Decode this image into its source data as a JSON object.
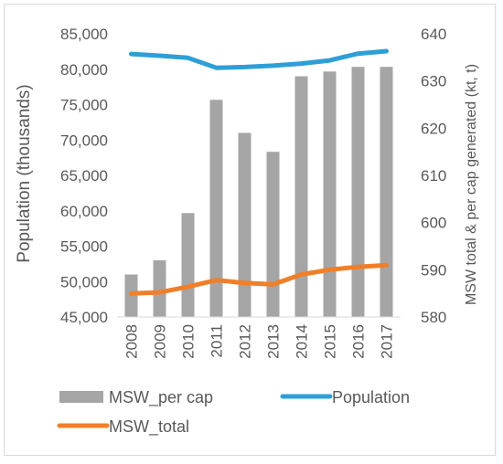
{
  "chart_data": {
    "type": "bar+line",
    "categories": [
      "2008",
      "2009",
      "2010",
      "2011",
      "2012",
      "2013",
      "2014",
      "2015",
      "2016",
      "2017"
    ],
    "series": [
      {
        "name": "MSW_per cap",
        "type": "bar",
        "axis": "right",
        "color": "#a5a5a5",
        "values": [
          589,
          592,
          602,
          626,
          619,
          615,
          631,
          632,
          633,
          633
        ]
      },
      {
        "name": "Population",
        "type": "line",
        "axis": "left",
        "color": "#2e9fd6",
        "values": [
          82150,
          81900,
          81600,
          80200,
          80300,
          80500,
          80800,
          81250,
          82200,
          82550
        ]
      },
      {
        "name": "MSW_total",
        "type": "line",
        "axis": "right",
        "color": "#f07f29",
        "values": [
          585,
          585.2,
          586.4,
          587.8,
          587.2,
          586.9,
          589,
          590,
          590.6,
          591
        ]
      }
    ],
    "ylabel_left": "Population (thousands)",
    "ylabel_right": "MSW total & per cap generated (kt, t)",
    "ylim_left": [
      45000,
      85000
    ],
    "yticks_left": [
      "45,000",
      "50,000",
      "55,000",
      "60,000",
      "65,000",
      "70,000",
      "75,000",
      "80,000",
      "85,000"
    ],
    "ylim_right": [
      580,
      640
    ],
    "yticks_right": [
      "580",
      "590",
      "600",
      "610",
      "620",
      "630",
      "640"
    ],
    "legend_position": "bottom",
    "grid": false
  }
}
